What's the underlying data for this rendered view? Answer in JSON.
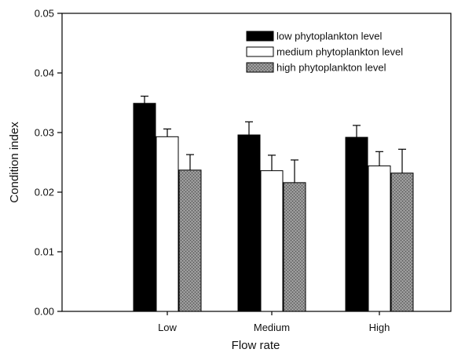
{
  "chart_data": {
    "type": "bar",
    "xlabel": "Flow rate",
    "ylabel": "Condition index",
    "ylim": [
      0,
      0.05
    ],
    "yticks": [
      "0.00",
      "0.01",
      "0.02",
      "0.03",
      "0.04",
      "0.05"
    ],
    "categories": [
      "Low",
      "Medium",
      "High"
    ],
    "grid": false,
    "legend_position": "top-right",
    "error_bars": "upper",
    "series": [
      {
        "name": "low phytoplankton level",
        "fill": "#000000",
        "pattern": "solid",
        "values": [
          0.0349,
          0.0296,
          0.0292
        ],
        "errors": [
          0.0012,
          0.0022,
          0.002
        ]
      },
      {
        "name": "medium phytoplankton level",
        "fill": "#ffffff",
        "pattern": "solid",
        "values": [
          0.0293,
          0.0236,
          0.0244
        ],
        "errors": [
          0.0013,
          0.0026,
          0.0024
        ]
      },
      {
        "name": "high phytoplankton level",
        "fill": "#888888",
        "pattern": "stipple",
        "values": [
          0.0237,
          0.0216,
          0.0232
        ],
        "errors": [
          0.0026,
          0.0038,
          0.004
        ]
      }
    ]
  }
}
